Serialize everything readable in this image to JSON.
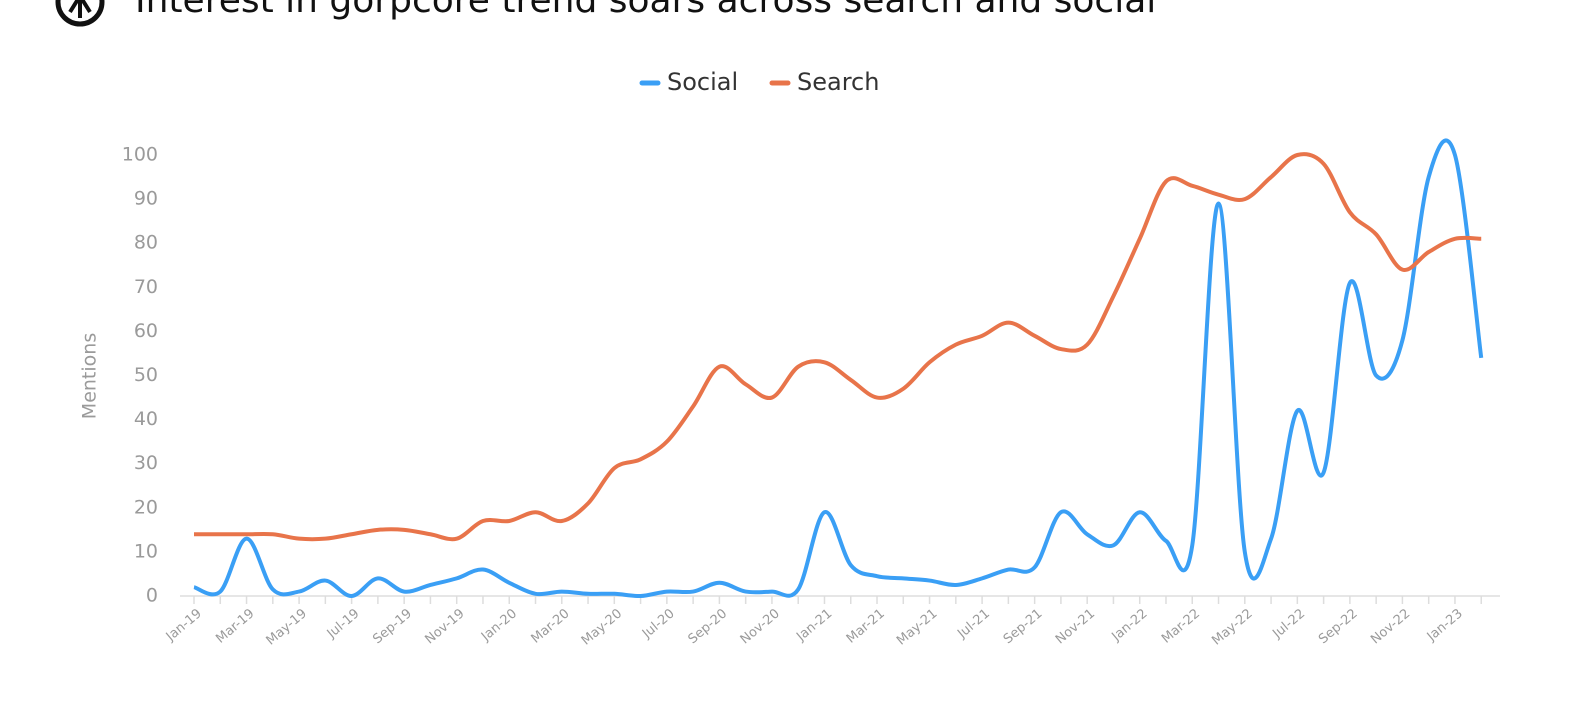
{
  "chart_data": {
    "type": "line",
    "title": "Interest in gorpcore trend soars across search and social",
    "y_label": "Mentions",
    "categories": [
      "Jan-19",
      null,
      "Mar-19",
      null,
      "May-19",
      null,
      "Jul-19",
      null,
      "Sep-19",
      null,
      "Nov-19",
      null,
      "Jan-20",
      null,
      "Mar-20",
      null,
      "May-20",
      null,
      "Jul-20",
      null,
      "Sep-20",
      null,
      "Nov-20",
      null,
      "Jan-21",
      null,
      "Mar-21",
      null,
      "May-21",
      null,
      "Jul-21",
      null,
      "Sep-21",
      null,
      "Nov-21",
      null,
      "Jan-22",
      null,
      "Mar-22",
      null,
      "May-22",
      null,
      "Jul-22",
      null,
      "Sep-22",
      null,
      "Nov-22",
      null,
      "Jan-23",
      null
    ],
    "series": [
      {
        "name": "Social",
        "color": "#3a9ff5",
        "values": [
          2,
          1,
          13,
          1.5,
          1,
          3.5,
          0,
          4,
          1,
          2.5,
          4,
          6,
          3,
          0.5,
          1,
          0.5,
          0.5,
          0,
          1,
          1,
          3,
          1,
          1,
          1.5,
          19,
          7,
          4.5,
          4,
          3.5,
          2.5,
          4,
          6,
          6.5,
          19,
          14,
          11.5,
          19,
          12.5,
          11.5,
          89,
          10,
          13,
          42,
          28,
          71,
          50,
          58,
          95,
          100,
          54
        ]
      },
      {
        "name": "Search",
        "color": "#e8744a",
        "values": [
          14,
          14,
          14,
          14,
          13,
          13,
          14,
          15,
          15,
          14,
          13,
          17,
          17,
          19,
          17,
          21,
          29,
          31,
          35,
          43,
          52,
          48,
          45,
          52,
          53,
          49,
          45,
          47,
          53,
          57,
          59,
          62,
          59,
          56,
          57,
          68,
          81,
          94,
          93,
          91,
          90,
          95,
          100,
          98,
          87,
          82,
          74,
          78,
          81,
          81
        ]
      }
    ],
    "ylim": [
      0,
      100
    ],
    "yticks": [
      0,
      10,
      20,
      30,
      40,
      50,
      60,
      70,
      80,
      90,
      100
    ],
    "grid": false,
    "legend": "top"
  }
}
